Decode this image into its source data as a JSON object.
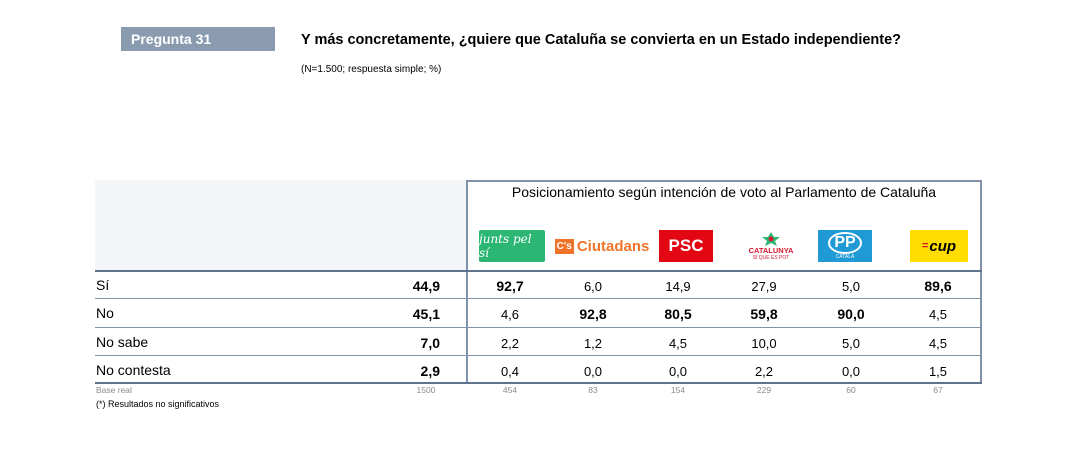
{
  "question": {
    "badge": "Pregunta 31",
    "title": "Y más concretamente, ¿quiere que Cataluña se convierta en un Estado independiente?",
    "note": "(N=1.500; respuesta simple; %)"
  },
  "table": {
    "group_header": "Posicionamiento según intención de voto al Parlamento de Cataluña",
    "parties": [
      {
        "name": "juntspelsí",
        "logo_text": "junts pel sí",
        "color": "#2bb673"
      },
      {
        "name": "Ciutadans",
        "logo_text": "Ciutadans",
        "color": "#f0732a"
      },
      {
        "name": "PSC",
        "logo_text": "PSC",
        "color": "#e30613"
      },
      {
        "name": "Catalunya Sí que es Pot",
        "logo_text": "CATALUNYA",
        "logo_sub": "SÍ QUE ES POT",
        "color": "#d6182f"
      },
      {
        "name": "PP",
        "logo_text": "PP",
        "logo_sub": "CATALÀ",
        "color": "#1f9ad6"
      },
      {
        "name": "CUP",
        "logo_text": "cup",
        "color": "#ffdd00"
      }
    ],
    "rows": [
      {
        "label": "Sí",
        "total": "44,9",
        "values": [
          "92,7",
          "6,0",
          "14,9",
          "27,9",
          "5,0",
          "89,6"
        ],
        "bold": [
          true,
          false,
          false,
          false,
          false,
          true
        ]
      },
      {
        "label": "No",
        "total": "45,1",
        "values": [
          "4,6",
          "92,8",
          "80,5",
          "59,8",
          "90,0",
          "4,5"
        ],
        "bold": [
          false,
          true,
          true,
          true,
          true,
          false
        ]
      },
      {
        "label": "No sabe",
        "total": "7,0",
        "values": [
          "2,2",
          "1,2",
          "4,5",
          "10,0",
          "5,0",
          "4,5"
        ],
        "bold": [
          false,
          false,
          false,
          false,
          false,
          false
        ]
      },
      {
        "label": "No contesta",
        "total": "2,9",
        "values": [
          "0,4",
          "0,0",
          "0,0",
          "2,2",
          "0,0",
          "1,5"
        ],
        "bold": [
          false,
          false,
          false,
          false,
          false,
          false
        ]
      }
    ],
    "base": {
      "label": "Base real",
      "total": "1500",
      "values": [
        "454",
        "83",
        "154",
        "229",
        "60",
        "67"
      ]
    },
    "footnote": "(*) Resultados no significativos"
  }
}
